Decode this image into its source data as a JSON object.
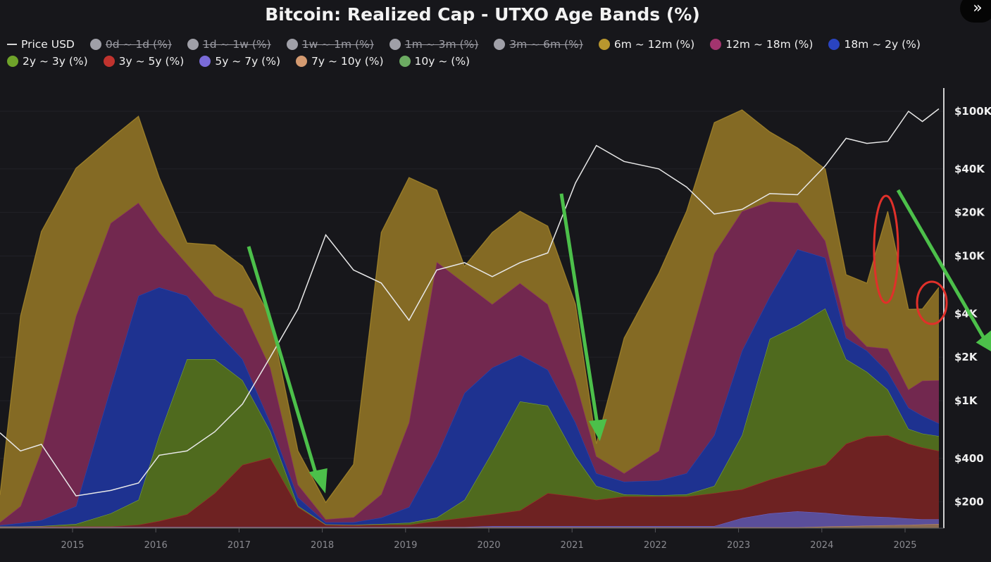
{
  "header": {
    "title": "Bitcoin: Realized Cap - UTXO Age Bands (%)",
    "nav_icon": "double-chevron-right-icon"
  },
  "legend": [
    {
      "label": "Price USD",
      "kind": "line",
      "color": "#d8d8d8",
      "active": true
    },
    {
      "label": "0d ~ 1d (%)",
      "kind": "dot",
      "color": "#a0a0a8",
      "active": false
    },
    {
      "label": "1d ~ 1w (%)",
      "kind": "dot",
      "color": "#a0a0a8",
      "active": false
    },
    {
      "label": "1w ~ 1m (%)",
      "kind": "dot",
      "color": "#a0a0a8",
      "active": false
    },
    {
      "label": "1m ~ 3m (%)",
      "kind": "dot",
      "color": "#a0a0a8",
      "active": false
    },
    {
      "label": "3m ~ 6m (%)",
      "kind": "dot",
      "color": "#a0a0a8",
      "active": false
    },
    {
      "label": "6m ~ 12m (%)",
      "kind": "dot",
      "color": "#b8962e",
      "active": true
    },
    {
      "label": "12m ~ 18m (%)",
      "kind": "dot",
      "color": "#a3346e",
      "active": true
    },
    {
      "label": "18m ~ 2y (%)",
      "kind": "dot",
      "color": "#2a44c0",
      "active": true
    },
    {
      "label": "2y ~ 3y (%)",
      "kind": "dot",
      "color": "#6fa32a",
      "active": true
    },
    {
      "label": "3y ~ 5y (%)",
      "kind": "dot",
      "color": "#c0332e",
      "active": true
    },
    {
      "label": "5y ~ 7y (%)",
      "kind": "dot",
      "color": "#7a6bd8",
      "active": true
    },
    {
      "label": "7y ~ 10y (%)",
      "kind": "dot",
      "color": "#d49a70",
      "active": true
    },
    {
      "label": "10y ~ (%)",
      "kind": "dot",
      "color": "#6cab62",
      "active": true
    }
  ],
  "chart_data": {
    "type": "area",
    "stacked": true,
    "title": "Bitcoin: Realized Cap - UTXO Age Bands (%)",
    "x": [
      "2014-02",
      "2014-05",
      "2014-08",
      "2015-01",
      "2015-06",
      "2015-10",
      "2016-01",
      "2016-05",
      "2016-09",
      "2017-01",
      "2017-05",
      "2017-09",
      "2018-01",
      "2018-05",
      "2018-09",
      "2019-01",
      "2019-05",
      "2019-09",
      "2020-01",
      "2020-05",
      "2020-09",
      "2021-01",
      "2021-04",
      "2021-08",
      "2022-01",
      "2022-05",
      "2022-09",
      "2023-01",
      "2023-05",
      "2023-09",
      "2024-01",
      "2024-04",
      "2024-07",
      "2024-10",
      "2025-01",
      "2025-03",
      "2025-05"
    ],
    "x_ticks": [
      "2015",
      "2016",
      "2017",
      "2018",
      "2019",
      "2020",
      "2021",
      "2022",
      "2023",
      "2024",
      "2025"
    ],
    "series": [
      {
        "name": "10y ~ (%)",
        "fill": "#4f7a48",
        "stroke": "#6cab62",
        "values": [
          0.1,
          0.1,
          0.1,
          0.1,
          0.1,
          0.1,
          0.1,
          0.1,
          0.1,
          0.1,
          0.1,
          0.1,
          0.1,
          0.1,
          0.1,
          0.1,
          0.1,
          0.1,
          0.1,
          0.1,
          0.1,
          0.1,
          0.1,
          0.1,
          0.1,
          0.1,
          0.1,
          0.1,
          0.1,
          0.1,
          0.1,
          0.1,
          0.1,
          0.1,
          0.1,
          0.1,
          0.1
        ]
      },
      {
        "name": "7y ~ 10y (%)",
        "fill": "#8a6a52",
        "stroke": "#d49a70",
        "values": [
          0.1,
          0.1,
          0.1,
          0.1,
          0.1,
          0.1,
          0.1,
          0.1,
          0.1,
          0.1,
          0.1,
          0.1,
          0.1,
          0.1,
          0.1,
          0.1,
          0.1,
          0.1,
          0.1,
          0.1,
          0.1,
          0.1,
          0.1,
          0.1,
          0.1,
          0.1,
          0.1,
          0.1,
          0.1,
          0.1,
          0.3,
          0.4,
          0.5,
          0.6,
          0.7,
          0.8,
          0.9
        ]
      },
      {
        "name": "5y ~ 7y (%)",
        "fill": "#5a4e9a",
        "stroke": "#7a6bd8",
        "values": [
          0.1,
          0.1,
          0.1,
          0.1,
          0.1,
          0.1,
          0.1,
          0.1,
          0.1,
          0.1,
          0.1,
          0.1,
          0.1,
          0.1,
          0.1,
          0.1,
          0.1,
          0.1,
          0.3,
          0.3,
          0.3,
          0.3,
          0.3,
          0.3,
          0.3,
          0.3,
          0.3,
          2.2,
          3.3,
          3.8,
          3.2,
          2.6,
          2.2,
          1.9,
          1.5,
          1.2,
          1.1
        ]
      },
      {
        "name": "3y ~ 5y (%)",
        "fill": "#6e2222",
        "stroke": "#c0332e",
        "values": [
          0.1,
          0.1,
          0.1,
          0.1,
          0.1,
          0.5,
          1.4,
          3,
          8,
          14.7,
          16.4,
          4.7,
          0.5,
          0.4,
          0.5,
          0.5,
          1.4,
          2.2,
          2.8,
          3.7,
          7.8,
          7,
          6.2,
          7,
          7,
          7,
          7.8,
          6.8,
          8,
          9.3,
          11.4,
          16.9,
          18.9,
          19.4,
          17.7,
          17,
          16.2
        ]
      },
      {
        "name": "2y ~ 3y (%)",
        "fill": "#4f6a1e",
        "stroke": "#8fbf4a",
        "values": [
          0,
          0,
          0.1,
          0.6,
          3.1,
          5.9,
          20.3,
          36.7,
          31.7,
          20,
          6.3,
          0.3,
          0.1,
          0.1,
          0.2,
          0.5,
          0.8,
          4.2,
          14.7,
          25.8,
          20.7,
          9.5,
          3.3,
          0.5,
          0.3,
          0.5,
          1.7,
          12.8,
          33.3,
          34.7,
          37,
          20,
          15.3,
          10.8,
          3.5,
          3.3,
          3.5
        ]
      },
      {
        "name": "18m ~ 2y (%)",
        "fill": "#1e3290",
        "stroke": "#3050c8",
        "values": [
          0.3,
          0.8,
          1.4,
          4.2,
          29.7,
          48.3,
          35,
          15,
          7,
          5,
          2,
          2,
          0.5,
          0.6,
          1.5,
          3.7,
          14.5,
          25.3,
          20,
          11,
          8.5,
          8,
          3,
          3,
          3.5,
          5,
          12,
          20,
          10,
          18,
          12,
          5,
          5,
          4.2,
          5,
          4.2,
          3
        ]
      },
      {
        "name": "12m ~ 18m (%)",
        "fill": "#72284f",
        "stroke": "#a3346e",
        "values": [
          0.7,
          4,
          16.3,
          45,
          39,
          22,
          13,
          7.5,
          8,
          12,
          13,
          3,
          0.7,
          1.2,
          5.5,
          20,
          46,
          26,
          15,
          17,
          15.5,
          10,
          4,
          2,
          7,
          29,
          43,
          33,
          22.5,
          11,
          4,
          3,
          1,
          5.5,
          4.3,
          8.3,
          10.2
        ]
      },
      {
        "name": "6m ~ 12m (%)",
        "fill": "#846a24",
        "stroke": "#b8962e",
        "values": [
          6.5,
          45,
          52,
          35,
          20,
          20.5,
          13,
          5,
          12,
          10,
          12,
          8,
          4,
          12.5,
          62,
          58,
          17,
          4,
          17,
          17,
          18.5,
          18,
          3,
          32,
          42,
          33,
          31,
          24,
          16.5,
          13,
          17,
          12,
          15,
          32.5,
          19,
          17,
          22
        ]
      }
    ],
    "price": {
      "name": "Price USD",
      "color": "#e8e8e8",
      "scale": "log",
      "values": [
        600,
        450,
        500,
        220,
        240,
        270,
        420,
        450,
        610,
        950,
        2000,
        4300,
        14000,
        8000,
        6500,
        3600,
        8000,
        9000,
        7200,
        9000,
        10500,
        32000,
        58000,
        45000,
        40000,
        30000,
        19500,
        21000,
        27000,
        26500,
        42000,
        65000,
        60000,
        62000,
        100000,
        85000,
        104000
      ]
    },
    "y_right_ticks": [
      {
        "label": "$100K",
        "value": 100000
      },
      {
        "label": "$40K",
        "value": 40000
      },
      {
        "label": "$20K",
        "value": 20000
      },
      {
        "label": "$10K",
        "value": 10000
      },
      {
        "label": "$4K",
        "value": 4000
      },
      {
        "label": "$2K",
        "value": 2000
      },
      {
        "label": "$1K",
        "value": 1000
      },
      {
        "label": "$400",
        "value": 400
      },
      {
        "label": "$200",
        "value": 200
      }
    ],
    "annotations": {
      "arrows": {
        "color": "#4cc04a",
        "count": 4
      },
      "circles": {
        "color": "#e0302a",
        "count": 2
      }
    },
    "legend_position": "top",
    "grid": true
  }
}
